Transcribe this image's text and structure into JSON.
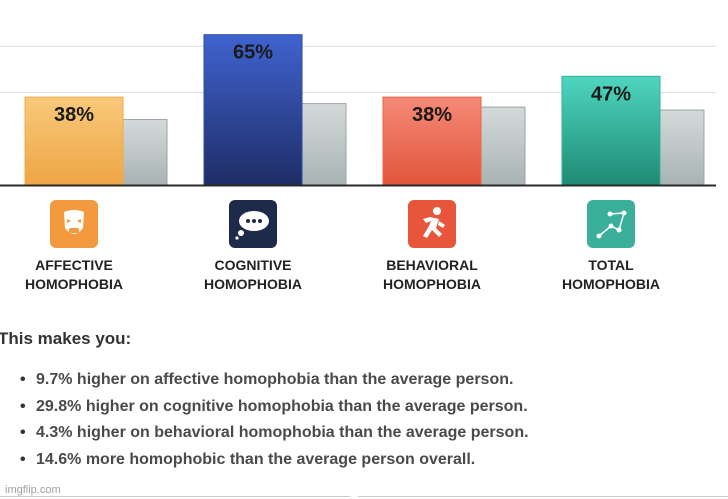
{
  "chart_data": {
    "type": "bar",
    "categories": [
      "AFFECTIVE HOMOPHOBIA",
      "COGNITIVE HOMOPHOBIA",
      "BEHAVIORAL HOMOPHOBIA",
      "TOTAL HOMOPHOBIA"
    ],
    "category_lines": [
      [
        "AFFECTIVE",
        "HOMOPHOBIA"
      ],
      [
        "COGNITIVE",
        "HOMOPHOBIA"
      ],
      [
        "BEHAVIORAL",
        "HOMOPHOBIA"
      ],
      [
        "TOTAL",
        "HOMOPHOBIA"
      ]
    ],
    "series": [
      {
        "name": "You",
        "values": [
          38,
          65,
          38,
          47
        ],
        "labels": [
          "38%",
          "65%",
          "38%",
          "47%"
        ]
      },
      {
        "name": "Average person",
        "values": [
          28.3,
          35.2,
          33.7,
          32.4
        ]
      }
    ],
    "ylim": [
      0,
      80
    ],
    "grid": true,
    "colors": {
      "you": [
        "#f0a94c",
        "#2f4baa",
        "#e8654a",
        "#2fb39a"
      ],
      "average": "#bcc4c4"
    },
    "icons": [
      "theater-mask-icon",
      "speech-bubble-icon",
      "running-person-icon",
      "constellation-icon"
    ],
    "icon_colors": [
      "#f29a3d",
      "#1e2a4a",
      "#e8553a",
      "#3ab09a"
    ]
  },
  "summary": {
    "title": "This makes you:",
    "items": [
      "9.7% higher on affective homophobia than the average person.",
      "29.8% higher on cognitive homophobia than the average person.",
      "4.3% higher on behavioral homophobia than the average person.",
      "14.6% more homophobic than the average person overall."
    ]
  },
  "watermark": "imgflip.com"
}
